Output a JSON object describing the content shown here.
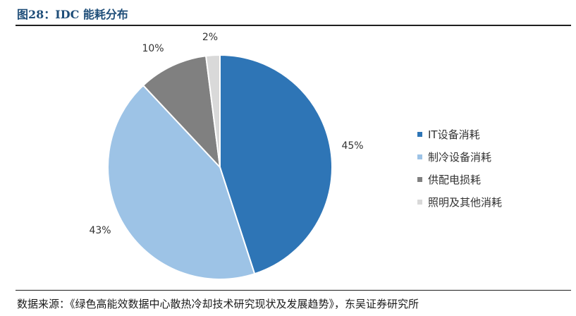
{
  "figure": {
    "title": "图28：IDC 能耗分布",
    "source": "数据来源：《绿色高能效数据中心散热冷却技术研究现状及发展趋势》，东吴证券研究所"
  },
  "chart_data": {
    "type": "pie",
    "title": "",
    "start_angle_deg": 0,
    "direction": "clockwise",
    "legend_position": "right",
    "slices": [
      {
        "name": "IT设备消耗",
        "value": 45,
        "label": "45%",
        "color": "#2e75b6"
      },
      {
        "name": "制冷设备消耗",
        "value": 43,
        "label": "43%",
        "color": "#9dc3e6"
      },
      {
        "name": "供配电损耗",
        "value": 10,
        "label": "10%",
        "color": "#808080"
      },
      {
        "name": "照明及其他消耗",
        "value": 2,
        "label": "2%",
        "color": "#d9d9d9"
      }
    ]
  }
}
